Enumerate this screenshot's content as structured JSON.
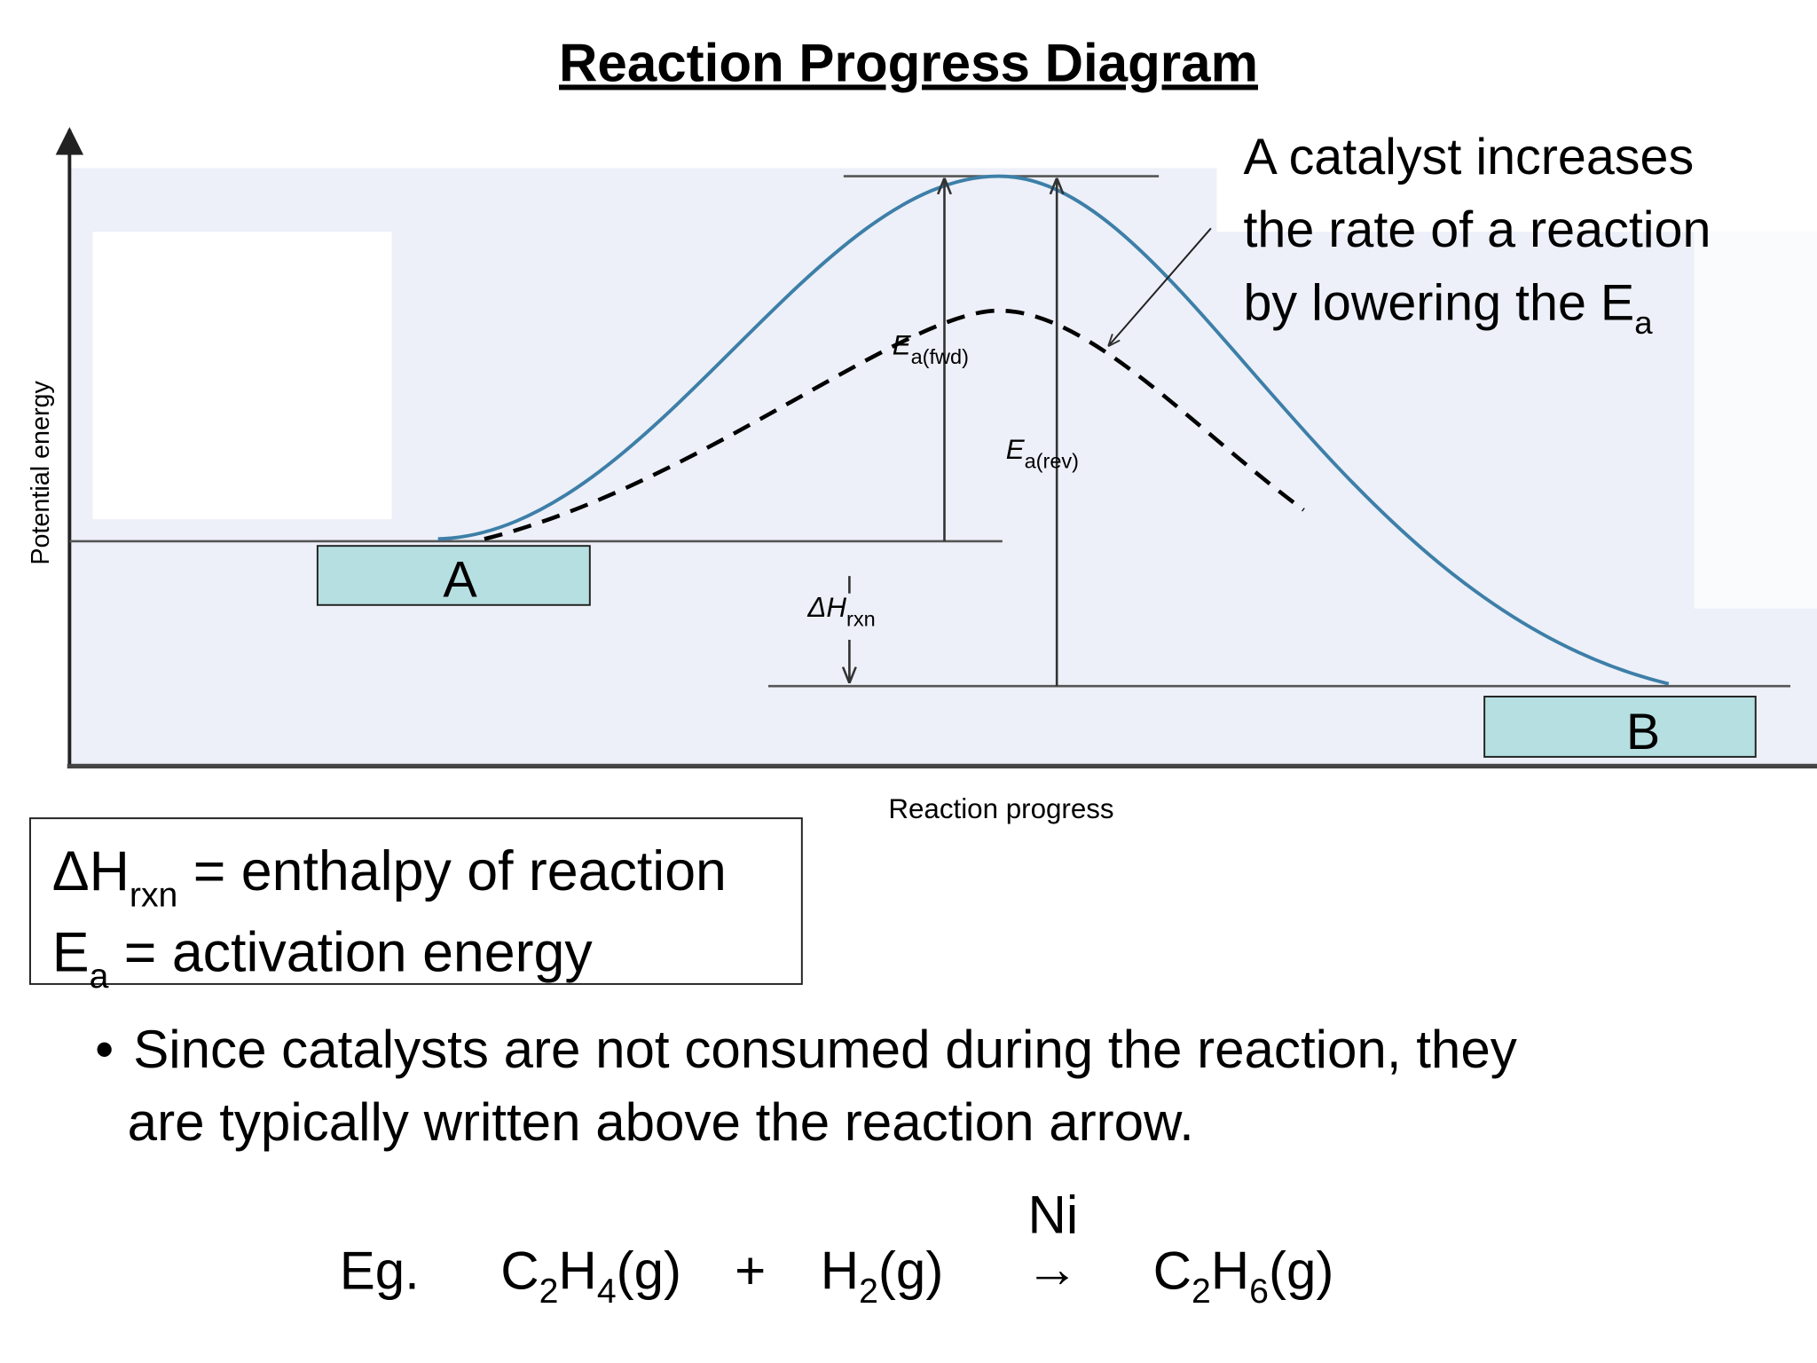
{
  "title": "Reaction Progress Diagram",
  "axes": {
    "y_label": "Potential energy",
    "x_label": "Reaction progress"
  },
  "states": {
    "reactant": "A",
    "product": "B"
  },
  "diagram_labels": {
    "ea_fwd": {
      "main": "E",
      "sub": "a(fwd)"
    },
    "ea_rev": {
      "main": "E",
      "sub": "a(rev)"
    },
    "dh_rxn": {
      "main": "ΔH",
      "sub": "rxn"
    }
  },
  "annotation": {
    "lines": [
      "A catalyst increases",
      "the rate of a reaction",
      "by lowering the E"
    ],
    "sub": "a"
  },
  "legend": {
    "line1": {
      "main": "ΔH",
      "sub": "rxn",
      "rest": " = enthalpy of reaction"
    },
    "line2": {
      "main": "E",
      "sub": "a",
      "rest": " = activation energy"
    }
  },
  "bullet": {
    "marker": "•",
    "lines": [
      "Since catalysts are not consumed during the reaction, they",
      "are typically written above the reaction arrow."
    ]
  },
  "equation": {
    "prefix": "Eg.",
    "catalyst": "Ni",
    "arrow": "→",
    "plus": "+",
    "reactant1": [
      {
        "t": "C"
      },
      {
        "s": "2"
      },
      {
        "t": "H"
      },
      {
        "s": "4"
      },
      {
        "t": "(g)"
      }
    ],
    "reactant2": [
      {
        "t": "H"
      },
      {
        "s": "2"
      },
      {
        "t": "(g)"
      }
    ],
    "product": [
      {
        "t": "C"
      },
      {
        "s": "2"
      },
      {
        "t": "H"
      },
      {
        "s": "6"
      },
      {
        "t": "(g)"
      }
    ]
  }
}
